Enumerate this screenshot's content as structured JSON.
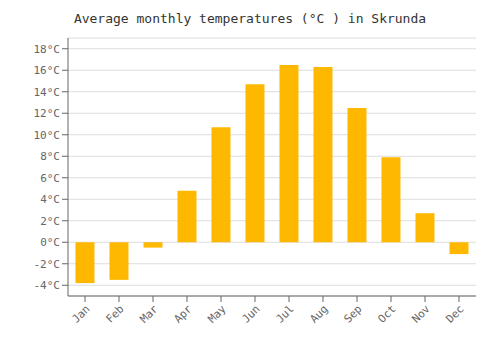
{
  "chart_data": {
    "type": "bar",
    "title": "Average monthly temperatures (°C ) in Skrunda",
    "categories": [
      "Jan",
      "Feb",
      "Mar",
      "Apr",
      "May",
      "Jun",
      "Jul",
      "Aug",
      "Sep",
      "Oct",
      "Nov",
      "Dec"
    ],
    "values": [
      -3.8,
      -3.5,
      -0.5,
      4.8,
      10.7,
      14.7,
      16.5,
      16.3,
      12.5,
      7.9,
      2.7,
      -1.1
    ],
    "color": "#FFB800",
    "ylim": [
      -5,
      19
    ],
    "yticks": [
      {
        "value": -4,
        "label": "-4°C"
      },
      {
        "value": -2,
        "label": "-2°C"
      },
      {
        "value": 0,
        "label": "0°C"
      },
      {
        "value": 2,
        "label": "2°C"
      },
      {
        "value": 4,
        "label": "4°C"
      },
      {
        "value": 6,
        "label": "6°C"
      },
      {
        "value": 8,
        "label": "8°C"
      },
      {
        "value": 10,
        "label": "10°C"
      },
      {
        "value": 12,
        "label": "12°C"
      },
      {
        "value": 14,
        "label": "14°C"
      },
      {
        "value": 16,
        "label": "16°C"
      },
      {
        "value": 18,
        "label": "18°C"
      }
    ],
    "grid": true
  }
}
